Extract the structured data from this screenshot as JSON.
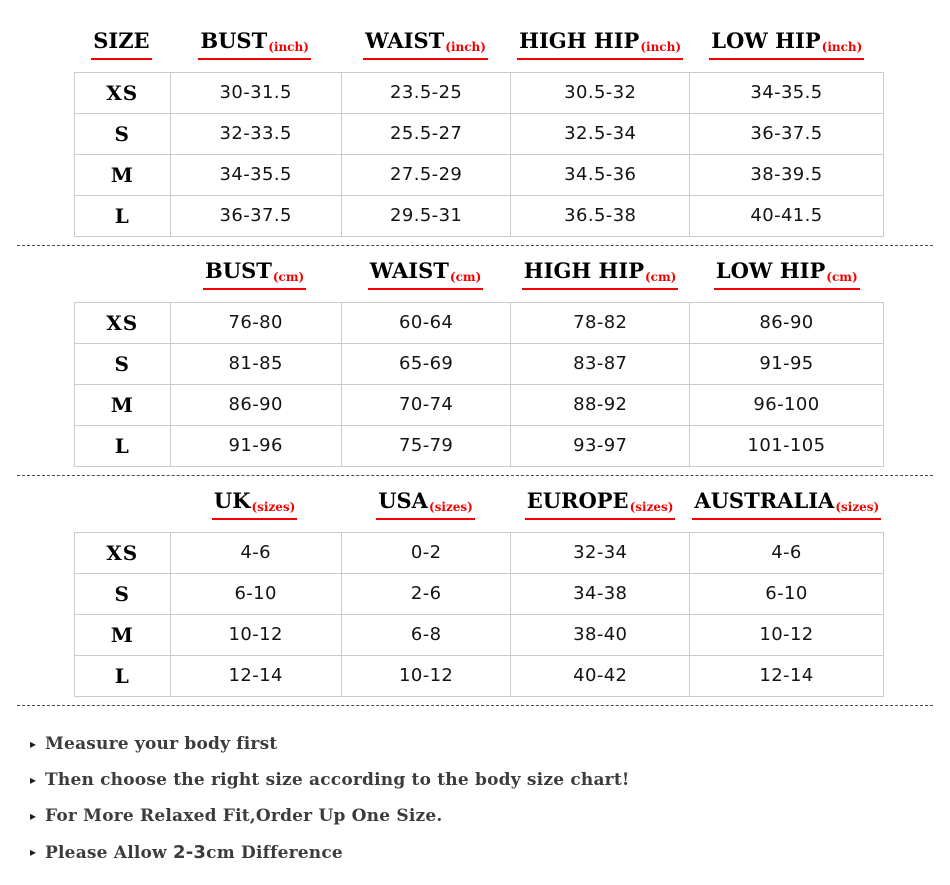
{
  "colors": {
    "page_bg": "#ffffff",
    "accent_red": "#f40000",
    "grid_border": "#cbcbcb",
    "header_text": "#000000",
    "cell_text": "#141414",
    "note_text": "#3c3c3c",
    "dash_line": "#4a4a4a"
  },
  "bullet_glyph": "▸",
  "tables": [
    {
      "name": "inches",
      "headers": [
        {
          "label": "SIZE",
          "sub": ""
        },
        {
          "label": "BUST",
          "sub": "(inch)"
        },
        {
          "label": "WAIST",
          "sub": "(inch)"
        },
        {
          "label": "HIGH HIP",
          "sub": "(inch)"
        },
        {
          "label": "LOW HIP",
          "sub": "(inch)"
        }
      ],
      "rows": [
        [
          "XS",
          "30-31.5",
          "23.5-25",
          "30.5-32",
          "34-35.5"
        ],
        [
          "S",
          "32-33.5",
          "25.5-27",
          "32.5-34",
          "36-37.5"
        ],
        [
          "M",
          "34-35.5",
          "27.5-29",
          "34.5-36",
          "38-39.5"
        ],
        [
          "L",
          "36-37.5",
          "29.5-31",
          "36.5-38",
          "40-41.5"
        ]
      ]
    },
    {
      "name": "centimeters",
      "headers": [
        {
          "label": "",
          "sub": ""
        },
        {
          "label": "BUST",
          "sub": "(cm)"
        },
        {
          "label": "WAIST",
          "sub": "(cm)"
        },
        {
          "label": "HIGH HIP",
          "sub": "(cm)"
        },
        {
          "label": "LOW HIP",
          "sub": "(cm)"
        }
      ],
      "rows": [
        [
          "XS",
          "76-80",
          "60-64",
          "78-82",
          "86-90"
        ],
        [
          "S",
          "81-85",
          "65-69",
          "83-87",
          "91-95"
        ],
        [
          "M",
          "86-90",
          "70-74",
          "88-92",
          "96-100"
        ],
        [
          "L",
          "91-96",
          "75-79",
          "93-97",
          "101-105"
        ]
      ]
    },
    {
      "name": "international-sizes",
      "headers": [
        {
          "label": "",
          "sub": ""
        },
        {
          "label": "UK",
          "sub": "(sizes)"
        },
        {
          "label": "USA",
          "sub": "(sizes)"
        },
        {
          "label": "EUROPE",
          "sub": "(sizes)"
        },
        {
          "label": "AUSTRALIA",
          "sub": "(sizes)"
        }
      ],
      "rows": [
        [
          "XS",
          "4-6",
          "0-2",
          "32-34",
          "4-6"
        ],
        [
          "S",
          "6-10",
          "2-6",
          "34-38",
          "6-10"
        ],
        [
          "M",
          "10-12",
          "6-8",
          "38-40",
          "10-12"
        ],
        [
          "L",
          "12-14",
          "10-12",
          "40-42",
          "12-14"
        ]
      ]
    }
  ],
  "notes": [
    {
      "segments": [
        {
          "text": "Measure your body first",
          "mono": false
        }
      ]
    },
    {
      "segments": [
        {
          "text": "Then choose the right size according to the body size chart!",
          "mono": false
        }
      ]
    },
    {
      "segments": [
        {
          "text": "For More Relaxed Fit,Order Up One Size.",
          "mono": false
        }
      ]
    },
    {
      "segments": [
        {
          "text": "Please Allow ",
          "mono": false
        },
        {
          "text": "2-3",
          "mono": true
        },
        {
          "text": "cm Difference",
          "mono": false
        }
      ]
    }
  ]
}
